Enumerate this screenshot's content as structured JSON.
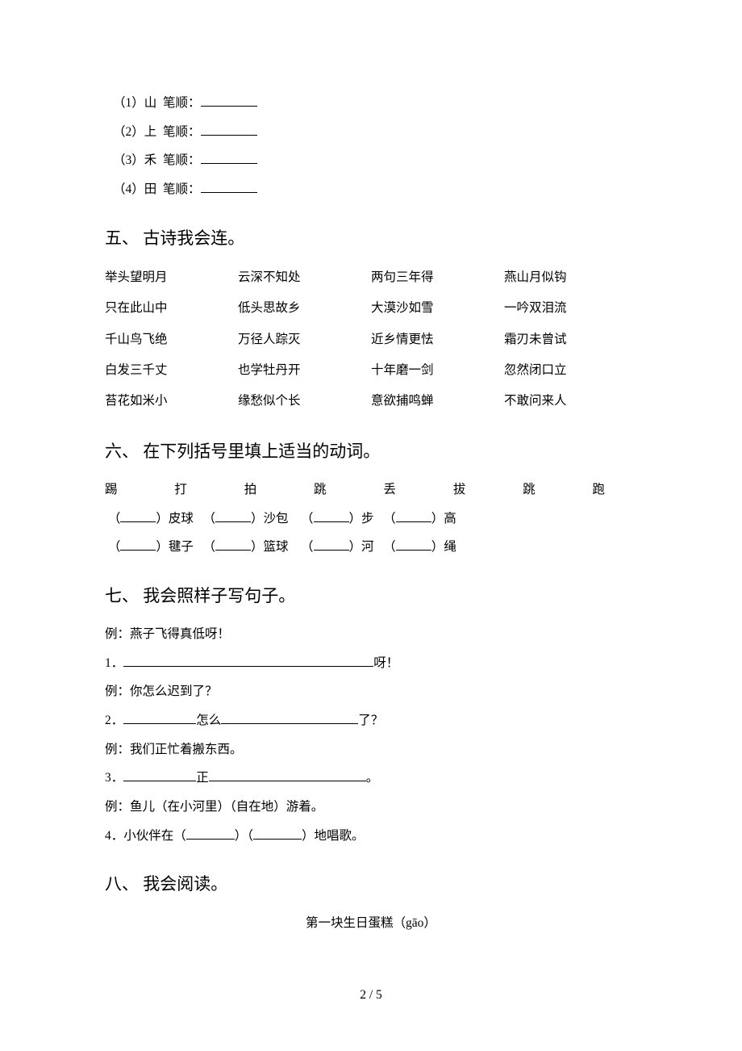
{
  "strokes": {
    "label": "笔顺：",
    "items": [
      {
        "num": "（1）",
        "char": "山"
      },
      {
        "num": "（2）",
        "char": "上"
      },
      {
        "num": "（3）",
        "char": "禾"
      },
      {
        "num": "（4）",
        "char": "田"
      }
    ],
    "blank_width": 70
  },
  "section5": {
    "title": "五、 古诗我会连。",
    "rows": [
      [
        "举头望明月",
        "云深不知处",
        "两句三年得",
        "燕山月似钩"
      ],
      [
        "只在此山中",
        "低头思故乡",
        "大漠沙如雪",
        "一吟双泪流"
      ],
      [
        "千山鸟飞绝",
        "万径人踪灭",
        "近乡情更怯",
        "霜刃未曾试"
      ],
      [
        "白发三千丈",
        "也学牡丹开",
        "十年磨一剑",
        "忽然闭口立"
      ],
      [
        "苔花如米小",
        "缘愁似个长",
        "意欲捕鸣蝉",
        "不敢问来人"
      ]
    ]
  },
  "section6": {
    "title": "六、 在下列括号里填上适当的动词。",
    "verbs": [
      "踢",
      "打",
      "拍",
      "跳",
      "丢",
      "拔",
      "跳",
      "跑"
    ],
    "fill_rows": [
      [
        "皮球",
        "沙包",
        "步",
        "高"
      ],
      [
        "毽子",
        "篮球",
        "河",
        "绳"
      ]
    ],
    "blank_width": 44
  },
  "section7": {
    "title": "七、 我会照样子写句子。",
    "items": [
      {
        "type": "ex",
        "text": "例：燕子飞得真低呀！"
      },
      {
        "type": "q1",
        "num": "1．",
        "tail": "呀！",
        "blank1": 310
      },
      {
        "type": "ex",
        "text": "例：你怎么迟到了？"
      },
      {
        "type": "q2",
        "num": "2．",
        "mid": "怎么",
        "tail": "了？",
        "blank1": 90,
        "blank2": 170
      },
      {
        "type": "ex",
        "text": "例：我们正忙着搬东西。"
      },
      {
        "type": "q3",
        "num": "3．",
        "mid": "正",
        "tail": "。",
        "blank1": 90,
        "blank2": 195
      },
      {
        "type": "ex",
        "text": "例：鱼儿（在小河里）（自在地）游着。"
      },
      {
        "type": "q4",
        "num": "4．",
        "pre": "小伙伴在（",
        "mid": "）（",
        "tail": "）地唱歌。",
        "blank1": 60,
        "blank2": 60
      }
    ]
  },
  "section8": {
    "title": "八、 我会阅读。",
    "subtitle": "第一块生日蛋糕（gāo）"
  },
  "page_number": "2 / 5"
}
